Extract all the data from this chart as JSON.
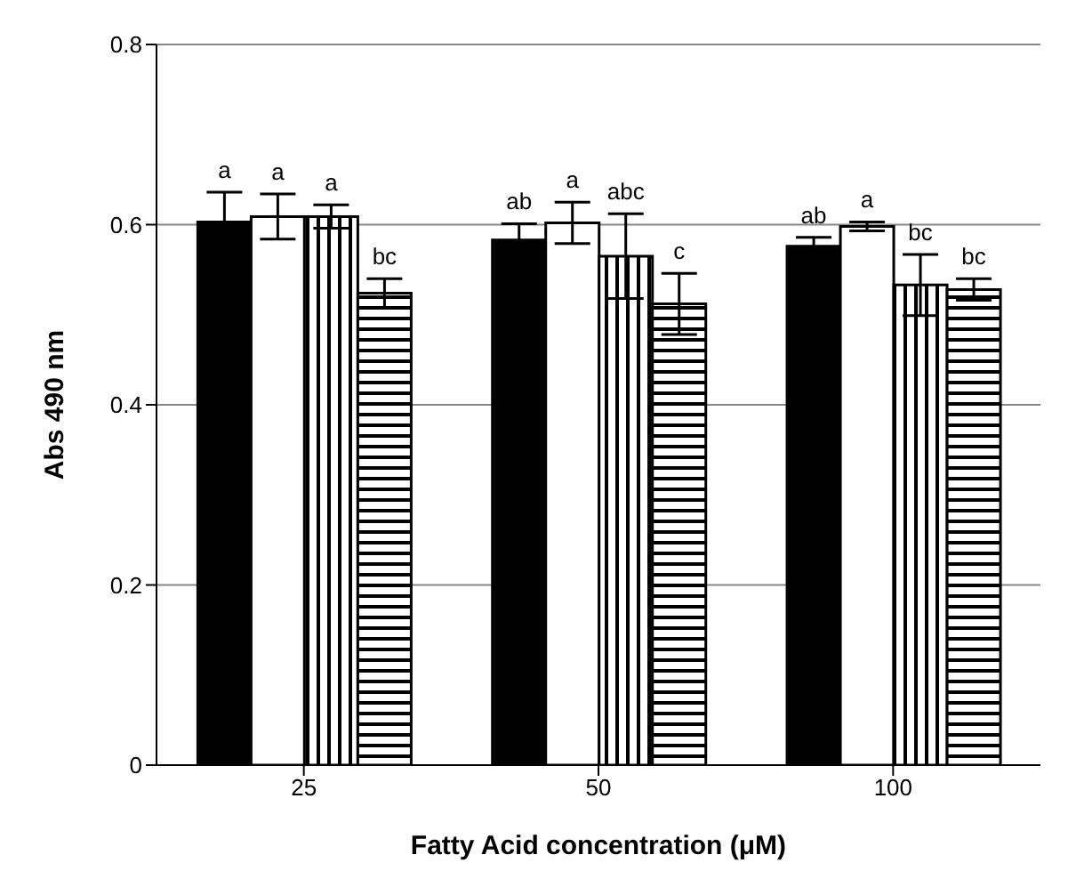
{
  "chart_data": {
    "type": "bar",
    "xlabel": "Fatty Acid concentration (μM)",
    "ylabel": "Abs 490 nm",
    "categories": [
      "25",
      "50",
      "100"
    ],
    "series": [
      {
        "color": "#000000",
        "values": [
          0.603,
          0.583,
          0.576
        ],
        "errors": [
          0.033,
          0.018,
          0.01
        ],
        "value_labels": [
          "a",
          "ab",
          "ab"
        ]
      },
      {
        "color": "#ffffff",
        "values": [
          0.609,
          0.602,
          0.598
        ],
        "errors": [
          0.025,
          0.023,
          0.005
        ],
        "value_labels": [
          "a",
          "a",
          "a"
        ]
      },
      {
        "color": "#000000",
        "values": [
          0.609,
          0.565,
          0.533
        ],
        "errors": [
          0.013,
          0.047,
          0.034
        ],
        "value_labels": [
          "a",
          "abc",
          "bc"
        ]
      },
      {
        "color": "#000000",
        "values": [
          0.524,
          0.512,
          0.528
        ],
        "errors": [
          0.016,
          0.034,
          0.012
        ],
        "value_labels": [
          "bc",
          "c",
          "bc"
        ]
      }
    ],
    "ylim": [
      0,
      0.8
    ],
    "yticks": [
      0,
      0.2,
      0.4,
      0.6,
      0.8
    ],
    "grid": "y",
    "legend": false
  }
}
